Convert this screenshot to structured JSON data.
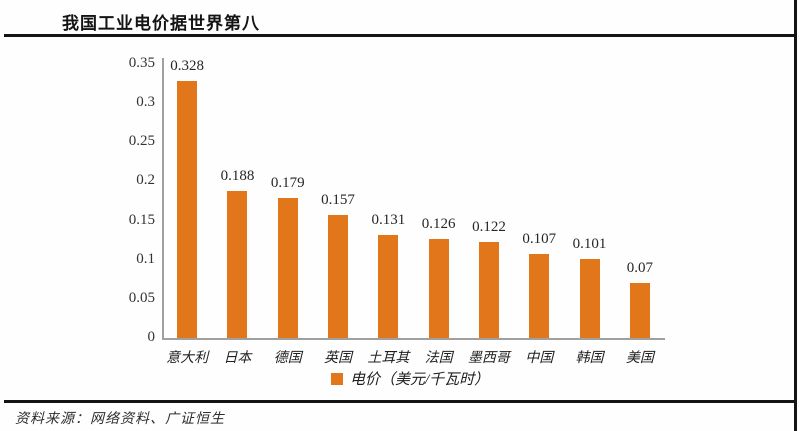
{
  "header": {
    "title": "我国工业电价据世界第八"
  },
  "chart_data": {
    "type": "bar",
    "title": "我国工业电价据世界第八",
    "categories": [
      "意大利",
      "日本",
      "德国",
      "英国",
      "土耳其",
      "法国",
      "墨西哥",
      "中国",
      "韩国",
      "美国"
    ],
    "values": [
      0.328,
      0.188,
      0.179,
      0.157,
      0.131,
      0.126,
      0.122,
      0.107,
      0.101,
      0.07
    ],
    "value_labels": [
      "0.328",
      "0.188",
      "0.179",
      "0.157",
      "0.131",
      "0.126",
      "0.122",
      "0.107",
      "0.101",
      "0.07"
    ],
    "yticks": [
      "0",
      "0.05",
      "0.1",
      "0.15",
      "0.2",
      "0.25",
      "0.3",
      "0.35"
    ],
    "ylim": [
      0,
      0.35
    ],
    "ytick_interval": 0.05,
    "xlabel": "",
    "ylabel": "",
    "grid": false,
    "legend_position": "bottom",
    "legend": [
      {
        "label": "电价（美元/千瓦时）",
        "color": "#e2761b"
      }
    ],
    "bar_color": "#e2761b"
  },
  "footer": {
    "source": "资料来源：网络资料、广证恒生"
  },
  "colors": {
    "bar": "#e2761b",
    "rule": "#141414",
    "axis": "#a0a0a0",
    "text": "#262626"
  }
}
